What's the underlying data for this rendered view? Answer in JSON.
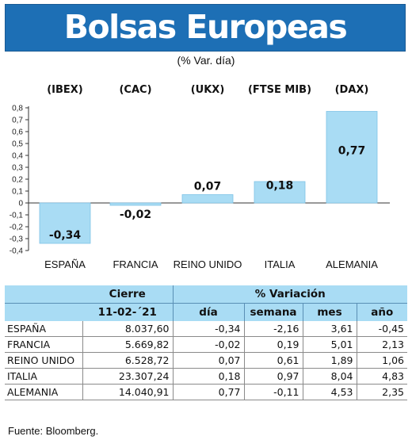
{
  "header": {
    "title": "Bolsas Europeas",
    "subtitle": "(% Var. día)"
  },
  "chart_data": {
    "type": "bar",
    "categories": [
      "ESPAÑA",
      "FRANCIA",
      "REINO UNIDO",
      "ITALIA",
      "ALEMANIA"
    ],
    "index_labels": [
      "(IBEX)",
      "(CAC)",
      "(UKX)",
      "(FTSE MIB)",
      "(DAX)"
    ],
    "values": [
      -0.34,
      -0.02,
      0.07,
      0.18,
      0.77
    ],
    "value_labels": [
      "-0,34",
      "-0,02",
      "0,07",
      "0,18",
      "0,77"
    ],
    "yticks": [
      0.8,
      0.7,
      0.6,
      0.5,
      0.4,
      0.3,
      0.2,
      0.1,
      0,
      -0.1,
      -0.2,
      -0.3,
      -0.4
    ],
    "ytick_labels": [
      "0,8",
      "0,7",
      "0,6",
      "0,5",
      "0,4",
      "0,3",
      "0,2",
      "0,1",
      "0",
      "-0,1",
      "-0,2",
      "-0,3",
      "-0,4"
    ],
    "ylim": [
      -0.4,
      0.8
    ],
    "grid": false,
    "colors": {
      "bar": "#a9dcf4",
      "bar_edge": "#7fc3e6",
      "axis": "#333333"
    }
  },
  "table": {
    "header_cierre": "Cierre",
    "header_variacion": "% Variación",
    "date": "11-02-´21",
    "col_dia": "día",
    "col_semana": "semana",
    "col_mes": "mes",
    "col_ano": "año",
    "rows": [
      {
        "name": "ESPAÑA",
        "cierre": "8.037,60",
        "dia": "-0,34",
        "semana": "-2,16",
        "mes": "3,61",
        "ano": "-0,45"
      },
      {
        "name": "FRANCIA",
        "cierre": "5.669,82",
        "dia": "-0,02",
        "semana": "0,19",
        "mes": "5,01",
        "ano": "2,13"
      },
      {
        "name": "REINO UNIDO",
        "cierre": "6.528,72",
        "dia": "0,07",
        "semana": "0,61",
        "mes": "1,89",
        "ano": "1,06"
      },
      {
        "name": "ITALIA",
        "cierre": "23.307,24",
        "dia": "0,18",
        "semana": "0,97",
        "mes": "8,04",
        "ano": "4,83"
      },
      {
        "name": "ALEMANIA",
        "cierre": "14.040,91",
        "dia": "0,77",
        "semana": "-0,11",
        "mes": "4,53",
        "ano": "2,35"
      }
    ]
  },
  "source": "Fuente: Bloomberg.",
  "colors": {
    "header_blue": "#1d6fb5",
    "table_header": "#a9dcf4"
  }
}
